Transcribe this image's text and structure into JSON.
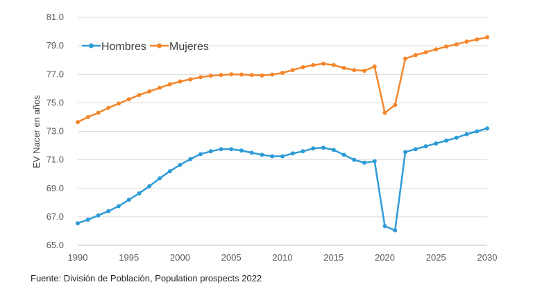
{
  "chart_data": {
    "type": "line",
    "title": "",
    "xlabel": "",
    "ylabel": "EV Nacer en años",
    "xlim": [
      1990,
      2030
    ],
    "ylim": [
      65.0,
      81.0
    ],
    "yticks": [
      "65.0",
      "67.0",
      "69.0",
      "71.0",
      "73.0",
      "75.0",
      "77.0",
      "79.0",
      "81.0"
    ],
    "xticks": [
      "1990",
      "1995",
      "2000",
      "2005",
      "2010",
      "2015",
      "2020",
      "2025",
      "2030"
    ],
    "grid": "horizontal",
    "legend_position": "top-left",
    "x": [
      1990,
      1991,
      1992,
      1993,
      1994,
      1995,
      1996,
      1997,
      1998,
      1999,
      2000,
      2001,
      2002,
      2003,
      2004,
      2005,
      2006,
      2007,
      2008,
      2009,
      2010,
      2011,
      2012,
      2013,
      2014,
      2015,
      2016,
      2017,
      2018,
      2019,
      2020,
      2021,
      2022,
      2023,
      2024,
      2025,
      2026,
      2027,
      2028,
      2029,
      2030
    ],
    "series": [
      {
        "name": "Hombres",
        "color": "#2e9bd6",
        "values": [
          66.55,
          66.8,
          67.1,
          67.4,
          67.75,
          68.2,
          68.65,
          69.15,
          69.7,
          70.2,
          70.65,
          71.05,
          71.4,
          71.6,
          71.75,
          71.75,
          71.65,
          71.5,
          71.35,
          71.25,
          71.25,
          71.45,
          71.6,
          71.8,
          71.85,
          71.7,
          71.35,
          71.0,
          70.8,
          70.9,
          66.35,
          66.05,
          71.55,
          71.75,
          71.95,
          72.15,
          72.35,
          72.55,
          72.8,
          73.0,
          73.2
        ]
      },
      {
        "name": "Mujeres",
        "color": "#f4862b",
        "values": [
          73.65,
          74.0,
          74.3,
          74.65,
          74.95,
          75.25,
          75.55,
          75.8,
          76.05,
          76.3,
          76.5,
          76.65,
          76.8,
          76.9,
          76.95,
          77.0,
          76.98,
          76.95,
          76.92,
          76.98,
          77.1,
          77.3,
          77.5,
          77.65,
          77.75,
          77.65,
          77.45,
          77.3,
          77.25,
          77.55,
          74.3,
          74.85,
          78.1,
          78.35,
          78.55,
          78.75,
          78.95,
          79.1,
          79.3,
          79.45,
          79.6
        ]
      }
    ]
  },
  "source_note": "Fuente: División de Población, Population prospects 2022"
}
